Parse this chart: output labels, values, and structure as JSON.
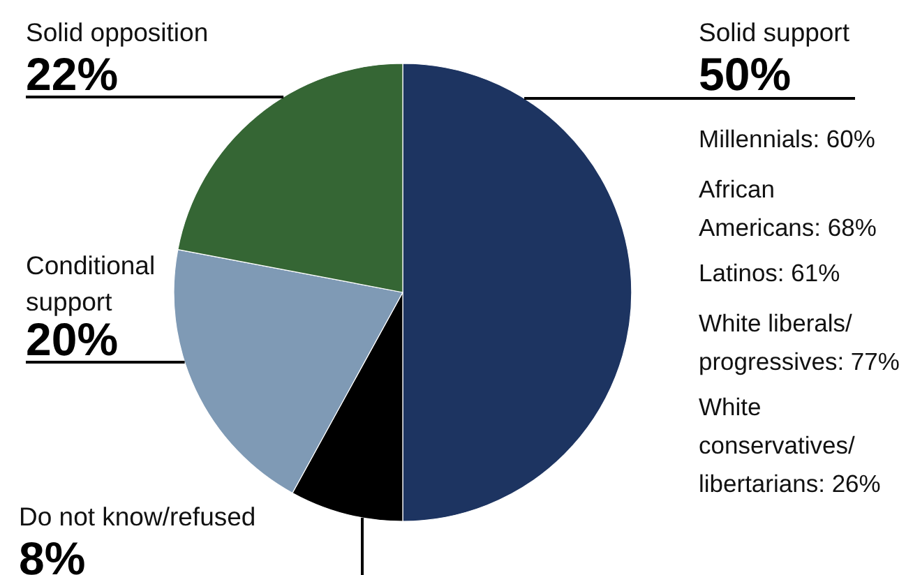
{
  "chart_data": {
    "type": "pie",
    "categories": [
      "Solid support",
      "Do not know/refused",
      "Conditional support",
      "Solid opposition"
    ],
    "values": [
      50,
      8,
      20,
      22
    ],
    "colors": [
      "#1d3461",
      "#000000",
      "#7f9ab5",
      "#356634"
    ],
    "value_labels": [
      "50%",
      "8%",
      "20%",
      "22%"
    ],
    "annotations": [
      "Millennials: 60%",
      "African Americans: 68%",
      "Latinos: 61%",
      "White liberals/progressives: 77%",
      "White conservatives/libertarians: 26%"
    ]
  }
}
